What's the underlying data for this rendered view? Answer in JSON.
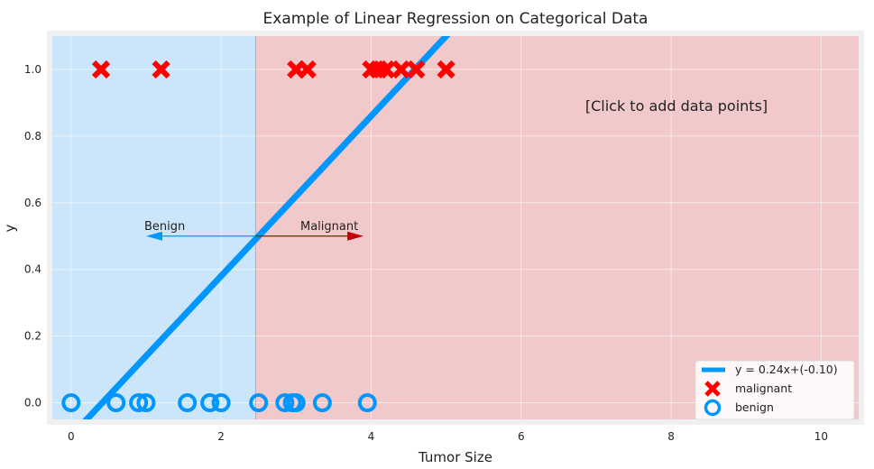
{
  "chart_data": {
    "type": "scatter",
    "title": "Example of Linear Regression on Categorical Data",
    "xlabel": "Tumor Size",
    "ylabel": "y",
    "xlim": [
      -0.25,
      10.5
    ],
    "ylim": [
      -0.05,
      1.1
    ],
    "xticks": [
      0,
      2,
      4,
      6,
      8,
      10
    ],
    "yticks": [
      0.0,
      0.2,
      0.4,
      0.6,
      0.8,
      1.0
    ],
    "xtick_labels": [
      "0",
      "2",
      "4",
      "6",
      "8",
      "10"
    ],
    "ytick_labels": [
      "0.0",
      "0.2",
      "0.4",
      "0.6",
      "0.8",
      "1.0"
    ],
    "grid": true,
    "legend_position": "bottom-right",
    "decision_boundary_x": 2.46,
    "regions": [
      {
        "name": "benign-region",
        "from": -0.25,
        "to": 2.46,
        "color": "#cbe6fb"
      },
      {
        "name": "malignant-region",
        "from": 2.46,
        "to": 10.5,
        "color": "#f1c9ca"
      }
    ],
    "regression_line": {
      "name": "y = 0.24x+(-0.10)",
      "slope": 0.24,
      "intercept": -0.1,
      "color": "#0096ff"
    },
    "series": [
      {
        "name": "malignant",
        "marker": "x",
        "color": "#ff0000",
        "x": [
          0.4,
          1.2,
          3.0,
          3.15,
          4.0,
          4.1,
          4.2,
          4.4,
          4.6,
          5.0
        ],
        "y": [
          1,
          1,
          1,
          1,
          1,
          1,
          1,
          1,
          1,
          1
        ]
      },
      {
        "name": "benign",
        "marker": "o",
        "color": "#0096ff",
        "x": [
          0.0,
          0.6,
          0.9,
          1.0,
          1.55,
          1.85,
          2.0,
          2.5,
          2.85,
          2.95,
          3.0,
          3.35,
          3.95
        ],
        "y": [
          0,
          0,
          0,
          0,
          0,
          0,
          0,
          0,
          0,
          0,
          0,
          0,
          0
        ]
      }
    ],
    "annotations": [
      {
        "name": "benign-arrow",
        "text": "Benign",
        "y": 0.5,
        "to_x": 1.0,
        "color": "#0096ff"
      },
      {
        "name": "malignant-arrow",
        "text": "Malignant",
        "y": 0.5,
        "to_x": 3.9,
        "color": "#c00000"
      }
    ],
    "hint": "[Click to add data points]"
  }
}
